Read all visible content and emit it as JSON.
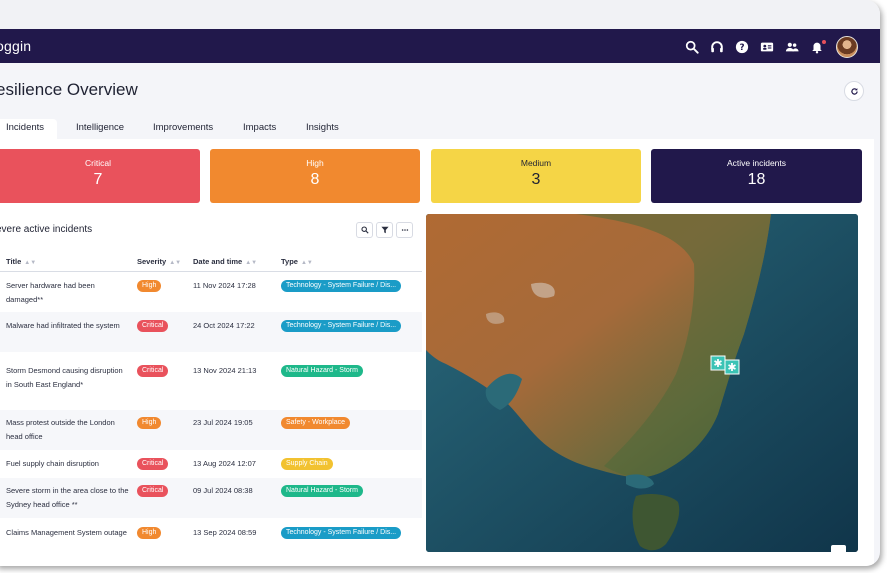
{
  "app": {
    "brand": "oggin"
  },
  "page": {
    "title": "esilience Overview"
  },
  "tabs": [
    {
      "label": "Incidents",
      "active": true
    },
    {
      "label": "Intelligence"
    },
    {
      "label": "Improvements"
    },
    {
      "label": "Impacts"
    },
    {
      "label": "Insights"
    }
  ],
  "summary": [
    {
      "label": "Critical",
      "value": "7",
      "color": "#e9525c"
    },
    {
      "label": "High",
      "value": "8",
      "color": "#f1892f"
    },
    {
      "label": "Medium",
      "value": "3",
      "color": "#f5d546"
    },
    {
      "label": "Active incidents",
      "value": "18",
      "color": "#21184b"
    }
  ],
  "table": {
    "title": "evere active incidents",
    "columns": [
      "Title",
      "Severity",
      "Date and time",
      "Type"
    ],
    "rows": [
      {
        "title_l1": "Server hardware had been",
        "title_l2": "damaged**",
        "severity": "High",
        "date": "11 Nov 2024 17:28",
        "type": "Technology - System Failure / Dis..."
      },
      {
        "title_l1": "Malware had infiltrated the system",
        "title_l2": "",
        "severity": "Critical",
        "date": "24 Oct 2024 17:22",
        "type": "Technology - System Failure / Dis..."
      },
      {
        "title_l1": "Storm Desmond causing disruption",
        "title_l2": "in South East England*",
        "severity": "Critical",
        "date": "13 Nov 2024 21:13",
        "type": "Natural Hazard - Storm"
      },
      {
        "title_l1": "Mass protest outside the London",
        "title_l2": "head office",
        "severity": "High",
        "date": "23 Jul 2024 19:05",
        "type": "Safety - Workplace"
      },
      {
        "title_l1": "Fuel supply chain disruption",
        "title_l2": "",
        "severity": "Critical",
        "date": "13 Aug 2024 12:07",
        "type": "Supply Chain"
      },
      {
        "title_l1": "Severe storm in the area close to the",
        "title_l2": "Sydney head office **",
        "severity": "Critical",
        "date": "09 Jul 2024 08:38",
        "type": "Natural Hazard - Storm"
      },
      {
        "title_l1": "Claims Management System outage",
        "title_l2": "",
        "severity": "High",
        "date": "13 Sep 2024 08:59",
        "type": "Technology - System Failure / Dis..."
      }
    ]
  },
  "colors": {
    "navbar": "#21184b",
    "critical": "#e9525c",
    "high": "#f1892f",
    "technology": "#1a9cc7",
    "natural": "#1eb88a",
    "safety": "#f1892f",
    "supply": "#f2c230",
    "marker": "#3bc3b5"
  },
  "icons": {
    "nav": [
      "search-icon",
      "headset-icon",
      "help-icon",
      "contact-card-icon",
      "users-icon",
      "bell-icon"
    ],
    "tools": [
      "search-icon",
      "filter-icon",
      "more-icon"
    ]
  }
}
